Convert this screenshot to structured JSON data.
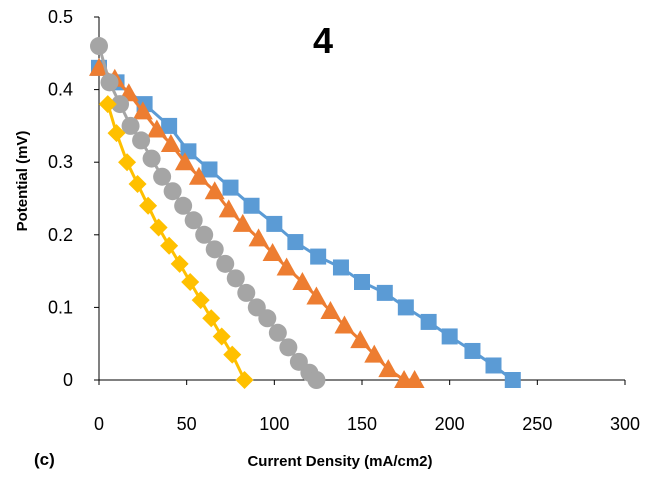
{
  "chart_data": {
    "type": "scatter",
    "title": "4",
    "panel_label": "(c)",
    "xlabel": "Current Density (mA/cm2)",
    "ylabel": "Potential (mV)",
    "xlim": [
      0,
      300
    ],
    "ylim": [
      0,
      0.5
    ],
    "x_ticks": [
      "0",
      "50",
      "100",
      "150",
      "200",
      "250",
      "300"
    ],
    "y_ticks": [
      "0",
      "0.1",
      "0.2",
      "0.3",
      "0.4",
      "0.5"
    ],
    "grid": false,
    "legend": false,
    "series": [
      {
        "color": "#5B9BD5",
        "marker": "square",
        "x": [
          0,
          10,
          26,
          40,
          51,
          63,
          75,
          87,
          100,
          112,
          125,
          138,
          150,
          163,
          175,
          188,
          200,
          213,
          225,
          236
        ],
        "y": [
          0.43,
          0.41,
          0.38,
          0.35,
          0.315,
          0.29,
          0.265,
          0.24,
          0.215,
          0.19,
          0.17,
          0.155,
          0.135,
          0.12,
          0.1,
          0.08,
          0.06,
          0.04,
          0.02,
          0.0
        ]
      },
      {
        "color": "#ED7D31",
        "marker": "triangle",
        "x": [
          0,
          9,
          17,
          25,
          33,
          41,
          49,
          57,
          66,
          74,
          82,
          91,
          99,
          107,
          116,
          124,
          132,
          140,
          149,
          157,
          165,
          174,
          180
        ],
        "y": [
          0.43,
          0.415,
          0.395,
          0.37,
          0.345,
          0.325,
          0.3,
          0.28,
          0.26,
          0.235,
          0.215,
          0.195,
          0.175,
          0.155,
          0.135,
          0.115,
          0.095,
          0.075,
          0.055,
          0.035,
          0.015,
          0.0,
          0.0
        ]
      },
      {
        "color": "#A5A5A5",
        "marker": "circle",
        "x": [
          0,
          6,
          12,
          18,
          24,
          30,
          36,
          42,
          48,
          54,
          60,
          66,
          72,
          78,
          84,
          90,
          96,
          102,
          108,
          114,
          120,
          124
        ],
        "y": [
          0.46,
          0.41,
          0.38,
          0.35,
          0.33,
          0.305,
          0.28,
          0.26,
          0.24,
          0.22,
          0.2,
          0.18,
          0.16,
          0.14,
          0.12,
          0.1,
          0.085,
          0.065,
          0.045,
          0.025,
          0.01,
          0.0
        ]
      },
      {
        "color": "#FFC000",
        "marker": "diamond",
        "x": [
          5,
          10,
          16,
          22,
          28,
          34,
          40,
          46,
          52,
          58,
          64,
          70,
          76,
          83
        ],
        "y": [
          0.38,
          0.34,
          0.3,
          0.27,
          0.24,
          0.21,
          0.185,
          0.16,
          0.135,
          0.11,
          0.085,
          0.06,
          0.035,
          0.0
        ]
      }
    ]
  }
}
